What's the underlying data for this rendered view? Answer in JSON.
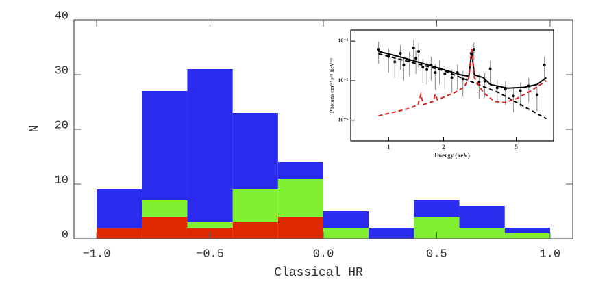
{
  "chart_data": [
    {
      "type": "histogram",
      "xlabel": "Classical HR",
      "ylabel": "N",
      "bins": [
        -1.0,
        -0.8,
        -0.6,
        -0.4,
        -0.2,
        0.0,
        0.2,
        0.4,
        0.6,
        0.8,
        1.0
      ],
      "stacked": true,
      "series": [
        {
          "color": "#e02800",
          "values": [
            2,
            4,
            2,
            3,
            4,
            0,
            0,
            0,
            0,
            0
          ]
        },
        {
          "color": "#80f030",
          "values": [
            0,
            3,
            1,
            6,
            7,
            2,
            0,
            4,
            2,
            1
          ]
        },
        {
          "color": "#2c2cf0",
          "values": [
            7,
            20,
            28,
            14,
            3,
            3,
            2,
            3,
            4,
            1
          ]
        }
      ],
      "xlim": [
        -1.1,
        1.1
      ],
      "ylim": [
        0,
        40
      ],
      "xticks": [
        {
          "value": -1.0,
          "label": "−1.0"
        },
        {
          "value": -0.5,
          "label": "−0.5"
        },
        {
          "value": 0.0,
          "label": "0.0"
        },
        {
          "value": 0.5,
          "label": "0.5"
        },
        {
          "value": 1.0,
          "label": "1.0"
        }
      ],
      "yticks": [
        0,
        10,
        20,
        30,
        40
      ]
    },
    {
      "type": "line",
      "xlabel": "Energy (keV)",
      "ylabel": "Photons cm⁻² s⁻¹ keV⁻¹",
      "xscale": "log",
      "yscale": "log",
      "xlim": [
        0.62,
        8
      ],
      "ylim": [
        3e-07,
        0.00019
      ],
      "xticks": [
        1,
        2,
        5
      ],
      "yticks": [
        {
          "value": 1e-06,
          "label": "10⁻⁶"
        },
        {
          "value": 1e-05,
          "label": "10⁻⁵"
        },
        {
          "value": 0.0001,
          "label": "10⁻⁴"
        }
      ],
      "series": [
        {
          "style": "points",
          "color": "#000000",
          "x": [
            0.88,
            1.0,
            1.08,
            1.16,
            1.21,
            1.3,
            1.37,
            1.41,
            1.46,
            1.54,
            1.62,
            1.71,
            1.8,
            1.9,
            2.03,
            2.22,
            2.38,
            2.55,
            2.83,
            2.93,
            3.13,
            3.36,
            3.6,
            3.93,
            4.36,
            4.83,
            5.27,
            5.85,
            6.49,
            7.13
          ],
          "values": [
            6.2e-05,
            4.1e-05,
            3e-05,
            4.9e-05,
            2.5e-05,
            3.3e-05,
            6.7e-05,
            3.7e-05,
            5.5e-05,
            2.2e-05,
            1.9e-05,
            2.5e-05,
            1.6e-05,
            2e-05,
            1.5e-05,
            1.2e-05,
            1.6e-05,
            1.1e-05,
            4.9e-05,
            6.2e-05,
            9.1e-06,
            9.8e-06,
            2e-05,
            6.6e-06,
            6.1e-06,
            4.1e-06,
            5.6e-06,
            7.4e-06,
            4.4e-06,
            2.5e-05
          ],
          "errors": [
            3.5e-05,
            2.5e-05,
            1.8e-05,
            3e-05,
            1.5e-05,
            2e-05,
            4e-05,
            2.2e-05,
            3.3e-05,
            1.3e-05,
            1.1e-05,
            1.5e-05,
            1e-05,
            1.2e-05,
            9e-06,
            7e-06,
            1e-05,
            7e-06,
            2.5e-05,
            3e-05,
            5.5e-06,
            6e-06,
            1.2e-05,
            4e-06,
            3.7e-06,
            2.5e-06,
            3.4e-06,
            4.5e-06,
            2.7e-06,
            1.5e-05
          ]
        },
        {
          "style": "solid",
          "color": "#000000",
          "x": [
            0.88,
            1.2,
            1.6,
            2.0,
            2.5,
            2.75,
            2.85,
            2.95,
            3.3,
            3.6,
            4.5,
            5.5,
            6.5,
            7.3
          ],
          "values": [
            5.5e-05,
            3.8e-05,
            2.6e-05,
            1.9e-05,
            1.4e-05,
            1.3e-05,
            5.5e-05,
            1.4e-05,
            1.2e-05,
            8e-06,
            6.5e-06,
            6.8e-06,
            8e-06,
            1.2e-05
          ]
        },
        {
          "style": "dashed",
          "color": "#000000",
          "x": [
            0.88,
            2.0,
            4.0,
            7.3
          ],
          "values": [
            4.8e-05,
            1.8e-05,
            5e-06,
            1.1e-06
          ]
        },
        {
          "style": "dashed",
          "color": "#e02020",
          "x": [
            0.88,
            1.3,
            1.45,
            1.5,
            1.55,
            1.75,
            1.8,
            1.85,
            2.3,
            2.6,
            2.75,
            2.85,
            2.95,
            3.3,
            3.8,
            4.3,
            5.0,
            6.0,
            7.3
          ],
          "values": [
            1.3e-06,
            2e-06,
            2.5e-06,
            4.5e-06,
            2.5e-06,
            3e-06,
            4.5e-06,
            3.3e-06,
            5e-06,
            7e-06,
            1.2e-05,
            7e-05,
            1.2e-05,
            5e-06,
            3e-06,
            2.8e-06,
            3.5e-06,
            5.5e-06,
            1e-05
          ]
        }
      ]
    }
  ]
}
